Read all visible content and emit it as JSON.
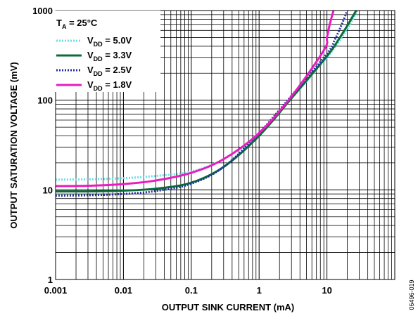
{
  "chart_data": {
    "type": "line",
    "title": "",
    "xlabel": "OUTPUT SINK CURRENT (mA)",
    "ylabel": "OUTPUT SATURATION VOLTAGE (mV)",
    "xscale": "log",
    "yscale": "log",
    "xlim": [
      0.001,
      100
    ],
    "ylim": [
      1,
      1000
    ],
    "x_ticks": [
      "0.001",
      "0.01",
      "0.1",
      "1",
      "10"
    ],
    "y_ticks": [
      "1",
      "10",
      "100",
      "1000"
    ],
    "grid": true,
    "legend_position": "top-left",
    "annotation": "T_A = 25°C",
    "annotation_main": "T",
    "annotation_sub": "A",
    "annotation_rest": " = 25°C",
    "figure_id": "06496-019",
    "series": [
      {
        "name": "V_DD = 5.0V",
        "label_main": "V",
        "label_sub": "DD",
        "label_rest": " = 5.0V",
        "color": "#66E0E8",
        "dash": "2,2",
        "x": [
          0.001,
          0.003,
          0.01,
          0.03,
          0.1,
          0.3,
          1,
          3,
          10,
          15,
          20,
          28
        ],
        "y": [
          13,
          13.1,
          13.5,
          14.3,
          16,
          22,
          42,
          105,
          300,
          450,
          620,
          1000
        ]
      },
      {
        "name": "V_DD = 3.3V",
        "label_main": "V",
        "label_sub": "DD",
        "label_rest": " = 3.3V",
        "color": "#0B6B3A",
        "dash": "",
        "x": [
          0.001,
          0.003,
          0.01,
          0.03,
          0.1,
          0.3,
          1,
          3,
          10,
          15,
          20,
          27
        ],
        "y": [
          9.6,
          9.6,
          9.8,
          10.3,
          12,
          18,
          40,
          105,
          310,
          480,
          680,
          1000
        ]
      },
      {
        "name": "V_DD = 2.5V",
        "label_main": "V",
        "label_sub": "DD",
        "label_rest": " = 2.5V",
        "color": "#1F2FA0",
        "dash": "2,2",
        "x": [
          0.001,
          0.003,
          0.01,
          0.03,
          0.1,
          0.3,
          1,
          3,
          10,
          13,
          16,
          20
        ],
        "y": [
          8.6,
          8.7,
          9,
          9.7,
          11.7,
          18,
          43,
          112,
          330,
          470,
          660,
          1000
        ]
      },
      {
        "name": "V_DD = 1.8V",
        "label_main": "V",
        "label_sub": "DD",
        "label_rest": " = 1.8V",
        "color": "#E81CC0",
        "dash": "",
        "x": [
          0.001,
          0.003,
          0.01,
          0.03,
          0.1,
          0.3,
          1,
          3,
          9,
          10,
          11,
          12.5
        ],
        "y": [
          11,
          11.1,
          11.6,
          12.7,
          15.5,
          22,
          43,
          110,
          360,
          500,
          700,
          1000
        ]
      }
    ]
  }
}
